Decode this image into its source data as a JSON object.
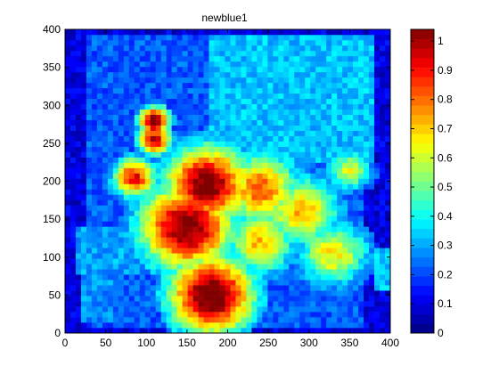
{
  "chart_data": {
    "type": "heatmap",
    "title": "newblue1",
    "xlabel": "",
    "ylabel": "",
    "xlim": [
      0,
      400
    ],
    "ylim": [
      0,
      400
    ],
    "x_ticks": [
      0,
      50,
      100,
      150,
      200,
      250,
      300,
      350,
      400
    ],
    "y_ticks": [
      0,
      50,
      100,
      150,
      200,
      250,
      300,
      350,
      400
    ],
    "colorbar": {
      "colormap": "jet",
      "range": [
        0,
        1.04
      ],
      "ticks": [
        0,
        0.1,
        0.2,
        0.3,
        0.4,
        0.5,
        0.6,
        0.7,
        0.8,
        0.9,
        1
      ],
      "levels": 32
    },
    "regions": [
      {
        "kind": "background",
        "value": 0.1
      },
      {
        "kind": "rect",
        "x": [
          25,
          370
        ],
        "y": [
          10,
          395
        ],
        "value": 0.22
      },
      {
        "kind": "rect",
        "x": [
          175,
          380
        ],
        "y": [
          225,
          390
        ],
        "value": 0.33
      },
      {
        "kind": "rect",
        "x": [
          15,
          90
        ],
        "y": [
          80,
          140
        ],
        "value": 0.3
      },
      {
        "kind": "rect",
        "x": [
          380,
          415
        ],
        "y": [
          55,
          110
        ],
        "value": 0.33
      },
      {
        "kind": "rect",
        "x": [
          20,
          60
        ],
        "y": [
          15,
          75
        ],
        "value": 0.28
      },
      {
        "kind": "blob",
        "x": 180,
        "y": 50,
        "r": 50,
        "value": 1.0
      },
      {
        "kind": "blob",
        "x": 150,
        "y": 140,
        "r": 55,
        "value": 0.95
      },
      {
        "kind": "blob",
        "x": 175,
        "y": 195,
        "r": 50,
        "value": 0.95
      },
      {
        "kind": "blob",
        "x": 110,
        "y": 280,
        "r": 18,
        "value": 1.0
      },
      {
        "kind": "blob",
        "x": 110,
        "y": 255,
        "r": 20,
        "value": 0.85
      },
      {
        "kind": "blob",
        "x": 85,
        "y": 205,
        "r": 25,
        "value": 0.8
      },
      {
        "kind": "blob",
        "x": 240,
        "y": 190,
        "r": 45,
        "value": 0.7
      },
      {
        "kind": "blob",
        "x": 290,
        "y": 160,
        "r": 45,
        "value": 0.6
      },
      {
        "kind": "blob",
        "x": 330,
        "y": 105,
        "r": 40,
        "value": 0.55
      },
      {
        "kind": "blob",
        "x": 240,
        "y": 120,
        "r": 40,
        "value": 0.6
      },
      {
        "kind": "blob",
        "x": 350,
        "y": 215,
        "r": 25,
        "value": 0.5
      }
    ]
  }
}
